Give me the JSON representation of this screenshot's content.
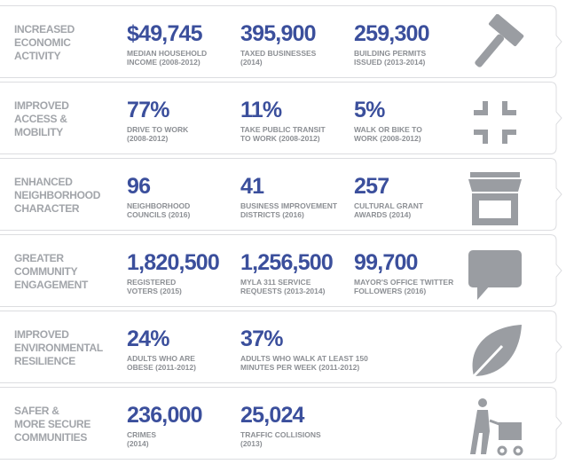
{
  "rows": [
    {
      "category": [
        "INCREASED",
        "ECONOMIC",
        "ACTIVITY"
      ],
      "stats": [
        {
          "value": "$49,745",
          "label": [
            "MEDIAN HOUSEHOLD",
            "INCOME (2008-2012)"
          ]
        },
        {
          "value": "395,900",
          "label": [
            "TAXED BUSINESSES",
            "(2014)"
          ]
        },
        {
          "value": "259,300",
          "label": [
            "BUILDING PERMITS",
            "ISSUED (2013-2014)"
          ]
        }
      ]
    },
    {
      "category": [
        "IMPROVED",
        "ACCESS &",
        "MOBILITY"
      ],
      "stats": [
        {
          "value": "77%",
          "label": [
            "DRIVE TO WORK",
            "(2008-2012)"
          ]
        },
        {
          "value": "11%",
          "label": [
            "TAKE PUBLIC TRANSIT",
            "TO WORK (2008-2012)"
          ]
        },
        {
          "value": "5%",
          "label": [
            "WALK OR BIKE TO",
            "WORK (2008-2012)"
          ]
        }
      ]
    },
    {
      "category": [
        "ENHANCED",
        "NEIGHBORHOOD",
        "CHARACTER"
      ],
      "stats": [
        {
          "value": "96",
          "label": [
            "NEIGHBORHOOD",
            "COUNCILS (2016)"
          ]
        },
        {
          "value": "41",
          "label": [
            "BUSINESS IMPROVEMENT",
            "DISTRICTS (2016)"
          ]
        },
        {
          "value": "257",
          "label": [
            "CULTURAL GRANT",
            "AWARDS (2014)"
          ]
        }
      ]
    },
    {
      "category": [
        "GREATER",
        "COMMUNITY",
        "ENGAGEMENT"
      ],
      "stats": [
        {
          "value": "1,820,500",
          "label": [
            "REGISTERED",
            "VOTERS (2015)"
          ]
        },
        {
          "value": "1,256,500",
          "label": [
            "MYLA 311 SERVICE",
            "REQUESTS (2013-2014)"
          ]
        },
        {
          "value": "99,700",
          "label": [
            "MAYOR'S OFFICE TWITTER",
            "FOLLOWERS (2016)"
          ]
        }
      ]
    },
    {
      "category": [
        "IMPROVED",
        "ENVIRONMENTAL",
        "RESILIENCE"
      ],
      "stats": [
        {
          "value": "24%",
          "label": [
            "ADULTS WHO ARE",
            "OBESE (2011-2012)"
          ]
        },
        {
          "value": "37%",
          "label": [
            "ADULTS WHO WALK AT LEAST 150",
            "MINUTES PER WEEK (2011-2012)"
          ]
        }
      ]
    },
    {
      "category": [
        "SAFER &",
        "MORE SECURE",
        "COMMUNITIES"
      ],
      "stats": [
        {
          "value": "236,000",
          "label": [
            "CRIMES",
            "(2014)"
          ]
        },
        {
          "value": "25,024",
          "label": [
            "TRAFFIC COLLISIONS",
            "(2013)"
          ]
        }
      ]
    }
  ]
}
